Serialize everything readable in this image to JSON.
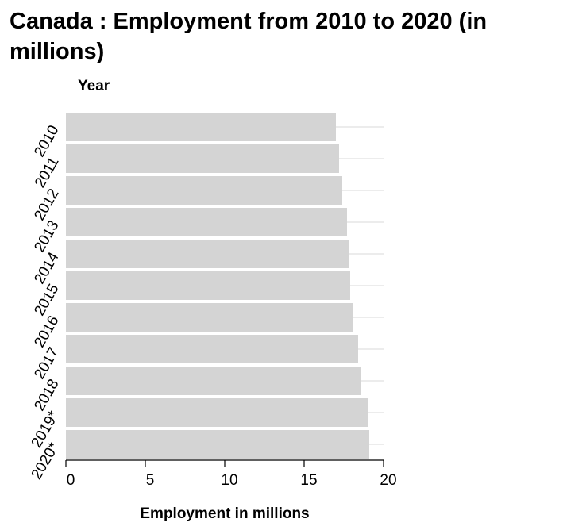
{
  "chart_data": {
    "type": "bar",
    "orientation": "horizontal",
    "title": "Canada : Employment from 2010 to 2020 (in millions)",
    "xlabel": "Employment in millions",
    "ylabel": "Year",
    "categories": [
      "2010",
      "2011",
      "2012",
      "2013",
      "2014",
      "2015",
      "2016",
      "2017",
      "2018",
      "2019*",
      "2020*"
    ],
    "values": [
      17.0,
      17.2,
      17.4,
      17.7,
      17.8,
      17.9,
      18.1,
      18.4,
      18.6,
      19.0,
      19.1
    ],
    "xlim": [
      0,
      20
    ],
    "xticks": [
      "0",
      "5",
      "10",
      "15",
      "20"
    ],
    "bar_color": "#d4d4d4",
    "grid": true
  }
}
